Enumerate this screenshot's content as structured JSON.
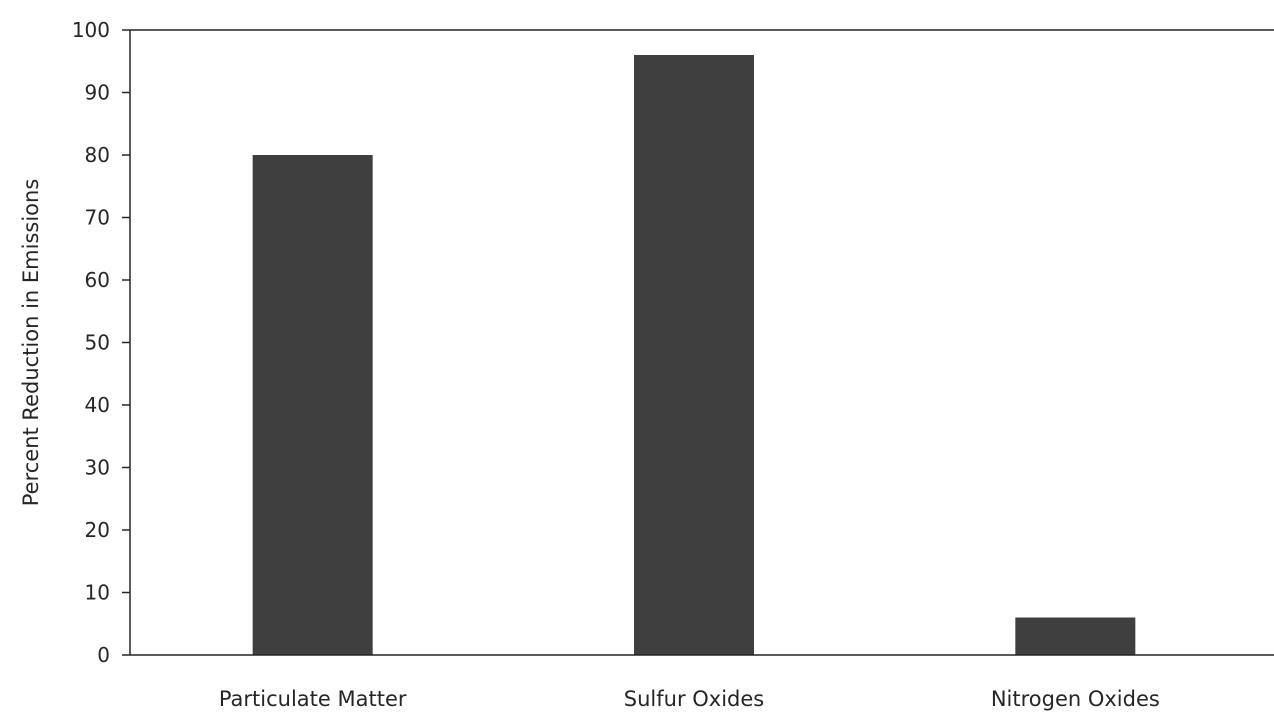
{
  "chart_data": {
    "type": "bar",
    "categories": [
      "Particulate Matter",
      "Sulfur Oxides",
      "Nitrogen Oxides"
    ],
    "values": [
      80,
      96,
      6
    ],
    "ylabel": "Percent Reduction in Emissions",
    "ylim": [
      0,
      100
    ],
    "yticks": [
      0,
      10,
      20,
      30,
      40,
      50,
      60,
      70,
      80,
      90,
      100
    ],
    "grid": false,
    "legend": "none",
    "colors": {
      "bar": "#3f3f3f",
      "axis": "#262626",
      "text": "#262626"
    }
  }
}
